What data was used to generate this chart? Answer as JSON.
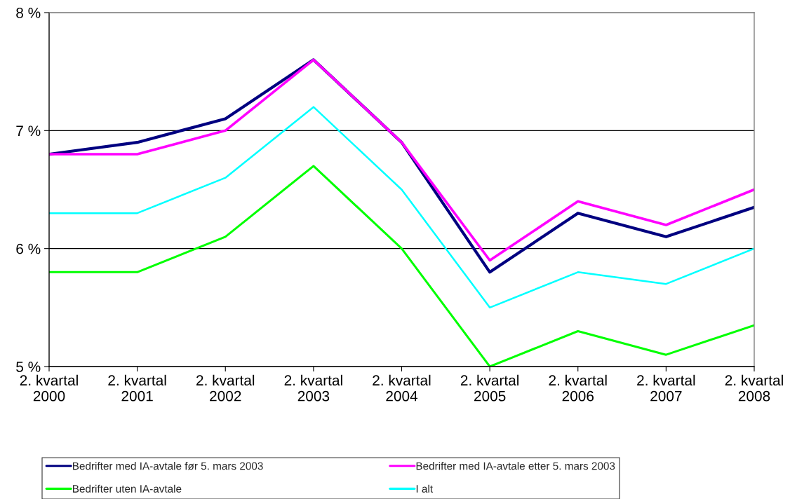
{
  "chart_data": {
    "type": "line",
    "categories": [
      "2. kvartal\n2000",
      "2. kvartal\n2001",
      "2. kvartal\n2002",
      "2. kvartal\n2003",
      "2. kvartal\n2004",
      "2. kvartal\n2005",
      "2. kvartal\n2006",
      "2. kvartal\n2007",
      "2. kvartal\n2008"
    ],
    "series": [
      {
        "name": "Bedrifter med IA-avtale før 5. mars 2003",
        "color": "#000080",
        "values": [
          6.8,
          6.9,
          7.1,
          7.6,
          6.9,
          5.8,
          6.3,
          6.1,
          6.35
        ]
      },
      {
        "name": "Bedrifter med IA-avtale etter 5. mars 2003",
        "color": "#ff00ff",
        "values": [
          6.8,
          6.8,
          7.0,
          7.6,
          6.9,
          5.9,
          6.4,
          6.2,
          6.5
        ]
      },
      {
        "name": "Bedrifter uten IA-avtale",
        "color": "#00ff00",
        "values": [
          5.8,
          5.8,
          6.1,
          6.7,
          6.0,
          5.0,
          5.3,
          5.1,
          5.35
        ]
      },
      {
        "name": "I alt",
        "color": "#00ffff",
        "values": [
          6.3,
          6.3,
          6.6,
          7.2,
          6.5,
          5.5,
          5.8,
          5.7,
          6.0
        ]
      }
    ],
    "ylim": [
      5,
      8
    ],
    "yticks": [
      {
        "value": 5,
        "label": "5 %"
      },
      {
        "value": 6,
        "label": "6 %"
      },
      {
        "value": 7,
        "label": "7 %"
      },
      {
        "value": 8,
        "label": "8 %"
      }
    ],
    "grid": "y",
    "legend": "bottom",
    "marker": "none",
    "line_style": "solid"
  }
}
